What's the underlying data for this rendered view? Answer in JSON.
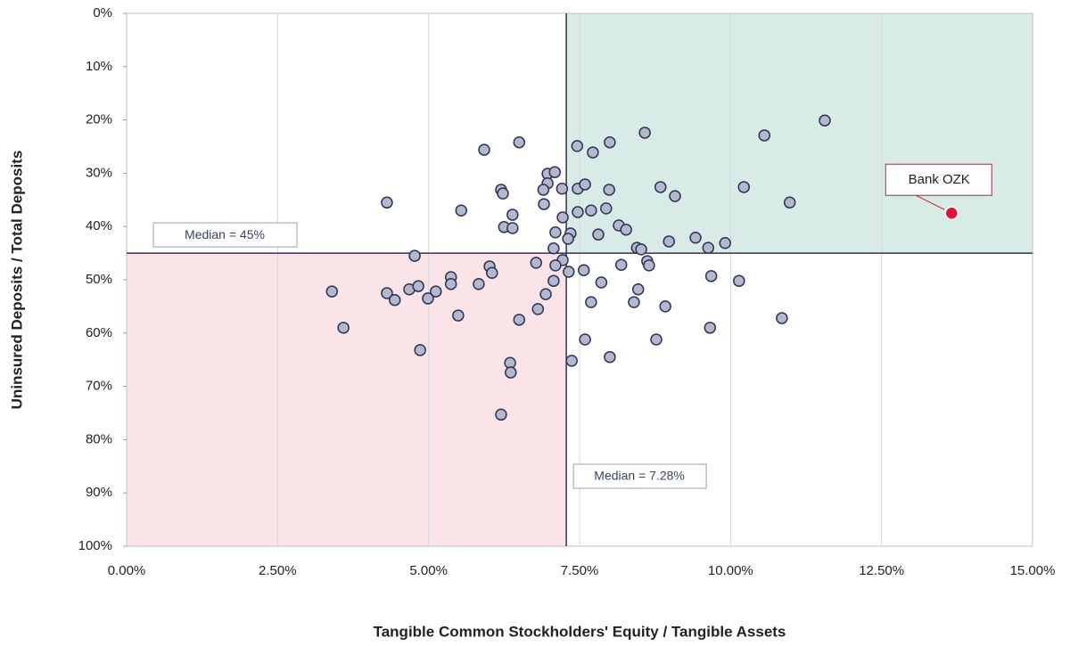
{
  "chart_data": {
    "type": "scatter",
    "x_label": "Tangible Common Stockholders' Equity / Tangible Assets",
    "y_label": "Uninsured Deposits / Total Deposits",
    "xlim": [
      0,
      15
    ],
    "ylim": [
      0,
      100
    ],
    "y_inverted": true,
    "grid": "x",
    "xticks": [
      {
        "value": 0,
        "label": "0.00%"
      },
      {
        "value": 2.5,
        "label": "2.50%"
      },
      {
        "value": 5,
        "label": "5.00%"
      },
      {
        "value": 7.5,
        "label": "7.50%"
      },
      {
        "value": 10,
        "label": "10.00%"
      },
      {
        "value": 12.5,
        "label": "12.50%"
      },
      {
        "value": 15,
        "label": "15.00%"
      }
    ],
    "yticks": [
      {
        "value": 0,
        "label": "0%"
      },
      {
        "value": 10,
        "label": "10%"
      },
      {
        "value": 20,
        "label": "20%"
      },
      {
        "value": 30,
        "label": "30%"
      },
      {
        "value": 40,
        "label": "40%"
      },
      {
        "value": 50,
        "label": "50%"
      },
      {
        "value": 60,
        "label": "60%"
      },
      {
        "value": 70,
        "label": "70%"
      },
      {
        "value": 80,
        "label": "80%"
      },
      {
        "value": 90,
        "label": "90%"
      },
      {
        "value": 100,
        "label": "100%"
      }
    ],
    "median_x": {
      "value": 7.28,
      "label": "Median = 7.28%"
    },
    "median_y": {
      "value": 45,
      "label": "Median = 45%"
    },
    "quadrant_colors": {
      "top_right": "#d9ebe6",
      "bottom_left": "#fbe4e8"
    },
    "series": [
      {
        "color": "#b4b8cc",
        "x": [
          11.56,
          10.56,
          8.58,
          6.5,
          7.46,
          8.0,
          7.72,
          5.92,
          6.97,
          7.09,
          6.97,
          6.9,
          6.2,
          6.23,
          7.21,
          7.47,
          7.59,
          7.99,
          8.84,
          9.08,
          10.22,
          10.98,
          4.31,
          6.91,
          5.54,
          7.47,
          7.69,
          7.94,
          6.39,
          7.22,
          6.25,
          6.39,
          8.15,
          8.27,
          7.1,
          7.35,
          7.81,
          7.31,
          9.42,
          8.98,
          9.91,
          9.63,
          8.45,
          8.52,
          7.07,
          4.77,
          7.22,
          6.78,
          8.19,
          8.62,
          8.65,
          7.1,
          6.01,
          6.05,
          7.32,
          7.57,
          9.68,
          5.37,
          5.37,
          5.83,
          7.07,
          7.86,
          10.14,
          3.4,
          4.31,
          4.68,
          4.83,
          5.12,
          8.47,
          4.44,
          4.99,
          6.94,
          8.4,
          7.69,
          8.92,
          6.81,
          5.49,
          6.5,
          10.85,
          3.59,
          9.66,
          7.59,
          8.77,
          4.86,
          8.0,
          7.37,
          6.35,
          6.36,
          6.2
        ],
        "values": [
          20.1,
          22.9,
          22.4,
          24.2,
          24.9,
          24.2,
          26.1,
          25.6,
          30.1,
          29.8,
          31.9,
          33.1,
          33.1,
          33.8,
          32.9,
          32.9,
          32.1,
          33.1,
          32.6,
          34.3,
          32.6,
          35.5,
          35.5,
          35.8,
          37.0,
          37.3,
          37.0,
          36.6,
          37.8,
          38.3,
          40.1,
          40.3,
          39.8,
          40.6,
          41.1,
          41.3,
          41.5,
          42.3,
          42.1,
          42.8,
          43.1,
          44.0,
          44.0,
          44.3,
          44.1,
          45.5,
          46.3,
          46.8,
          47.2,
          46.5,
          47.3,
          47.3,
          47.5,
          48.7,
          48.5,
          48.2,
          49.3,
          49.5,
          50.8,
          50.8,
          50.2,
          50.5,
          50.2,
          52.2,
          52.5,
          51.8,
          51.2,
          52.2,
          51.8,
          53.8,
          53.5,
          52.7,
          54.2,
          54.2,
          55.0,
          55.5,
          56.7,
          57.5,
          57.2,
          59.0,
          59.0,
          61.2,
          61.2,
          63.2,
          64.5,
          65.2,
          65.6,
          67.4,
          75.3
        ]
      },
      {
        "name": "Bank OZK",
        "color": "#e0103c",
        "x": [
          13.66
        ],
        "values": [
          37.5
        ]
      }
    ]
  }
}
